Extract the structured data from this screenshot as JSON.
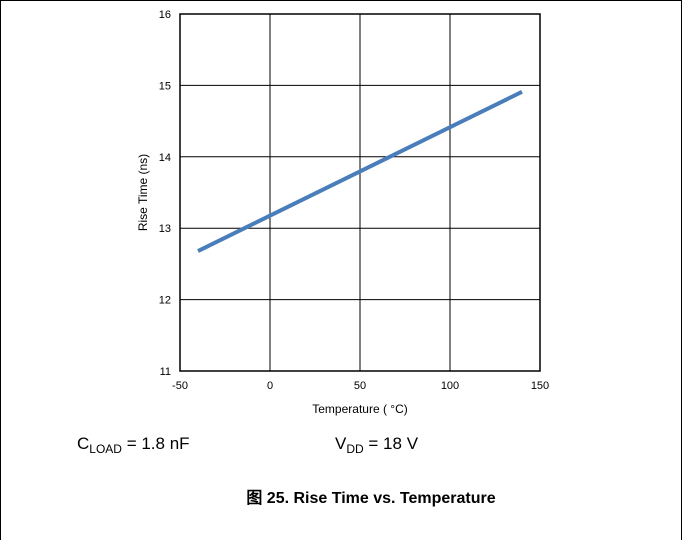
{
  "chart_data": {
    "type": "line",
    "xlabel": "Temperature ( °C)",
    "ylabel": "Rise Time (ns)",
    "xlim": [
      -50,
      150
    ],
    "ylim": [
      11,
      16
    ],
    "xticks": [
      -50,
      0,
      50,
      100,
      150
    ],
    "yticks": [
      11,
      12,
      13,
      14,
      15,
      16
    ],
    "grid": true,
    "series": [
      {
        "x": [
          -40,
          140
        ],
        "y": [
          12.68,
          14.91
        ],
        "color": "#4a7ebb"
      }
    ]
  },
  "conditions": {
    "load": {
      "symbol": "C",
      "subscript": "LOAD",
      "value": " = 1.8 nF"
    },
    "vdd": {
      "symbol": "V",
      "subscript": "DD",
      "value": " = 18 V"
    }
  },
  "caption": {
    "prefix": "图",
    "text": " 25. Rise Time vs. Temperature"
  }
}
